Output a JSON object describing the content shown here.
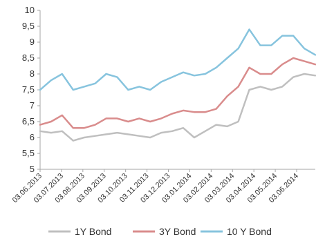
{
  "chart_data": {
    "type": "line",
    "title": "",
    "xlabel": "",
    "ylabel": "",
    "ylim": [
      5,
      10
    ],
    "y_ticks": [
      "5",
      "5,5",
      "6",
      "6,5",
      "7",
      "7,5",
      "8",
      "8,5",
      "9",
      "9,5",
      "10"
    ],
    "y_tick_values": [
      5,
      5.5,
      6,
      6.5,
      7,
      7.5,
      8,
      8.5,
      9,
      9.5,
      10
    ],
    "x_tick_labels": [
      "03.06.2013",
      "03.07.2013",
      "03.08.2013",
      "03.09.2013",
      "03.10.2013",
      "03.11.2013",
      "03.12.2013",
      "03.01.2014",
      "03.02.2014",
      "03.03.2014",
      "03.04.2014",
      "03.05.2014",
      "03.06.2014"
    ],
    "x": [
      "03.06.2013",
      "17.06.2013",
      "03.07.2013",
      "17.07.2013",
      "03.08.2013",
      "17.08.2013",
      "03.09.2013",
      "17.09.2013",
      "03.10.2013",
      "17.10.2013",
      "03.11.2013",
      "17.11.2013",
      "03.12.2013",
      "17.12.2013",
      "03.01.2014",
      "17.01.2014",
      "03.02.2014",
      "17.02.2014",
      "03.03.2014",
      "17.03.2014",
      "03.04.2014",
      "17.04.2014",
      "03.05.2014",
      "17.05.2014",
      "03.06.2014",
      "17.06.2014"
    ],
    "grid": false,
    "legend_position": "bottom",
    "series": [
      {
        "name": "1Y Bond",
        "color": "#bfbfbf",
        "values": [
          6.2,
          6.15,
          6.2,
          5.9,
          6.0,
          6.05,
          6.1,
          6.15,
          6.1,
          6.05,
          6.0,
          6.15,
          6.2,
          6.3,
          6.0,
          6.2,
          6.4,
          6.35,
          6.5,
          7.5,
          7.6,
          7.5,
          7.6,
          7.9,
          8.0,
          7.95
        ]
      },
      {
        "name": "3Y Bond",
        "color": "#d98c8c",
        "values": [
          6.4,
          6.5,
          6.7,
          6.3,
          6.3,
          6.4,
          6.6,
          6.6,
          6.5,
          6.6,
          6.5,
          6.6,
          6.75,
          6.85,
          6.8,
          6.8,
          6.9,
          7.3,
          7.6,
          8.2,
          8.0,
          8.0,
          8.3,
          8.5,
          8.4,
          8.3
        ]
      },
      {
        "name": "10 Y Bond",
        "color": "#87c4de",
        "values": [
          7.5,
          7.8,
          8.0,
          7.5,
          7.6,
          7.7,
          8.0,
          7.9,
          7.5,
          7.6,
          7.5,
          7.75,
          7.9,
          8.05,
          7.95,
          8.0,
          8.2,
          8.5,
          8.8,
          9.4,
          8.9,
          8.9,
          9.2,
          9.2,
          8.8,
          8.6
        ]
      }
    ]
  }
}
